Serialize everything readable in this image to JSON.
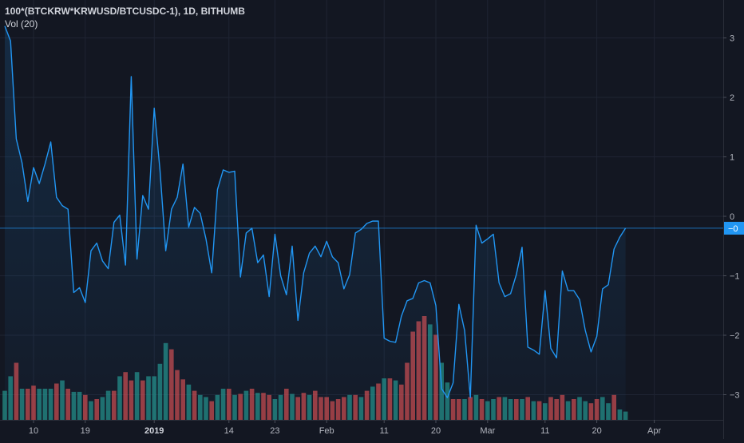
{
  "chart_data": {
    "type": "line",
    "title": "100*(BTCKRW*KRWUSD/BTCUSDC-1), 1D, BITHUMB",
    "indicator": "Vol (20)",
    "last_value_label": "−0",
    "ylim": [
      -3.4,
      3.4
    ],
    "y_ticks": [
      {
        "value": 3,
        "label": "3"
      },
      {
        "value": 2,
        "label": "2"
      },
      {
        "value": 1,
        "label": "1"
      },
      {
        "value": 0,
        "label": "0"
      },
      {
        "value": -1,
        "label": "−1"
      },
      {
        "value": -2,
        "label": "−2"
      },
      {
        "value": -3,
        "label": "−3"
      }
    ],
    "x_ticks": [
      {
        "i": 5,
        "label": "10",
        "bold": false
      },
      {
        "i": 14,
        "label": "19",
        "bold": false
      },
      {
        "i": 26,
        "label": "2019",
        "bold": true
      },
      {
        "i": 39,
        "label": "14",
        "bold": false
      },
      {
        "i": 47,
        "label": "23",
        "bold": false
      },
      {
        "i": 56,
        "label": "Feb",
        "bold": false
      },
      {
        "i": 66,
        "label": "11",
        "bold": false
      },
      {
        "i": 75,
        "label": "20",
        "bold": false
      },
      {
        "i": 84,
        "label": "Mar",
        "bold": false
      },
      {
        "i": 94,
        "label": "11",
        "bold": false
      },
      {
        "i": 103,
        "label": "20",
        "bold": false
      },
      {
        "i": 113,
        "label": "Apr",
        "bold": false
      }
    ],
    "line_color": "#2196f3",
    "volume_up_color": "#26a69a",
    "volume_down_color": "#ef5350",
    "values": [
      3.2,
      2.95,
      1.3,
      0.9,
      0.25,
      0.82,
      0.55,
      0.88,
      1.25,
      0.32,
      0.18,
      0.12,
      -1.28,
      -1.2,
      -1.45,
      -0.58,
      -0.45,
      -0.75,
      -0.88,
      -0.1,
      0.02,
      -0.82,
      2.35,
      -0.72,
      0.35,
      0.12,
      1.82,
      0.78,
      -0.58,
      0.12,
      0.32,
      0.88,
      -0.18,
      0.15,
      0.05,
      -0.38,
      -0.95,
      0.45,
      0.78,
      0.74,
      0.76,
      -1.02,
      -0.28,
      -0.2,
      -0.78,
      -0.65,
      -1.35,
      -0.3,
      -1.0,
      -1.32,
      -0.5,
      -1.75,
      -0.95,
      -0.62,
      -0.5,
      -0.68,
      -0.42,
      -0.68,
      -0.78,
      -1.22,
      -0.98,
      -0.28,
      -0.22,
      -0.12,
      -0.08,
      -0.08,
      -2.05,
      -2.1,
      -2.12,
      -1.68,
      -1.42,
      -1.38,
      -1.12,
      -1.08,
      -1.12,
      -1.5,
      -2.9,
      -3.05,
      -2.8,
      -1.48,
      -1.92,
      -3.05,
      -0.15,
      -0.45,
      -0.38,
      -0.3,
      -1.12,
      -1.35,
      -1.3,
      -0.98,
      -0.52,
      -2.2,
      -2.25,
      -2.32,
      -1.25,
      -2.22,
      -2.38,
      -0.92,
      -1.25,
      -1.25,
      -1.4,
      -1.92,
      -2.28,
      -2.02,
      -1.22,
      -1.15,
      -0.55,
      -0.35,
      -0.2
    ],
    "volume": [
      0.28,
      0.42,
      0.55,
      0.3,
      0.3,
      0.33,
      0.3,
      0.3,
      0.3,
      0.35,
      0.38,
      0.3,
      0.27,
      0.27,
      0.24,
      0.18,
      0.2,
      0.22,
      0.28,
      0.28,
      0.42,
      0.46,
      0.38,
      0.46,
      0.38,
      0.42,
      0.42,
      0.54,
      0.74,
      0.68,
      0.48,
      0.39,
      0.34,
      0.28,
      0.24,
      0.22,
      0.18,
      0.24,
      0.3,
      0.3,
      0.24,
      0.25,
      0.28,
      0.3,
      0.26,
      0.26,
      0.24,
      0.2,
      0.24,
      0.3,
      0.25,
      0.22,
      0.26,
      0.24,
      0.28,
      0.22,
      0.22,
      0.18,
      0.2,
      0.22,
      0.24,
      0.24,
      0.22,
      0.28,
      0.32,
      0.35,
      0.4,
      0.4,
      0.38,
      0.34,
      0.55,
      0.85,
      0.95,
      1.0,
      0.92,
      0.82,
      0.55,
      0.36,
      0.2,
      0.2,
      0.2,
      0.22,
      0.24,
      0.2,
      0.18,
      0.2,
      0.22,
      0.22,
      0.2,
      0.2,
      0.2,
      0.22,
      0.18,
      0.18,
      0.16,
      0.22,
      0.2,
      0.24,
      0.18,
      0.2,
      0.22,
      0.18,
      0.16,
      0.2,
      0.22,
      0.16,
      0.24,
      0.1,
      0.08
    ],
    "volume_up": [
      true,
      true,
      false,
      true,
      false,
      false,
      true,
      true,
      true,
      false,
      true,
      false,
      true,
      true,
      false,
      true,
      false,
      true,
      true,
      false,
      true,
      false,
      false,
      true,
      false,
      true,
      true,
      true,
      true,
      false,
      false,
      false,
      true,
      false,
      true,
      true,
      false,
      true,
      true,
      false,
      true,
      false,
      true,
      false,
      true,
      false,
      false,
      true,
      true,
      false,
      true,
      false,
      false,
      true,
      false,
      false,
      false,
      false,
      false,
      false,
      true,
      false,
      true,
      false,
      true,
      false,
      true,
      false,
      true,
      false,
      false,
      false,
      false,
      false,
      true,
      false,
      true,
      true,
      false,
      false,
      true,
      false,
      true,
      false,
      true,
      true,
      false,
      true,
      true,
      false,
      true,
      false,
      true,
      false,
      true,
      false,
      false,
      false,
      true,
      false,
      true,
      true,
      false,
      false,
      true,
      true,
      false,
      true,
      true
    ]
  }
}
